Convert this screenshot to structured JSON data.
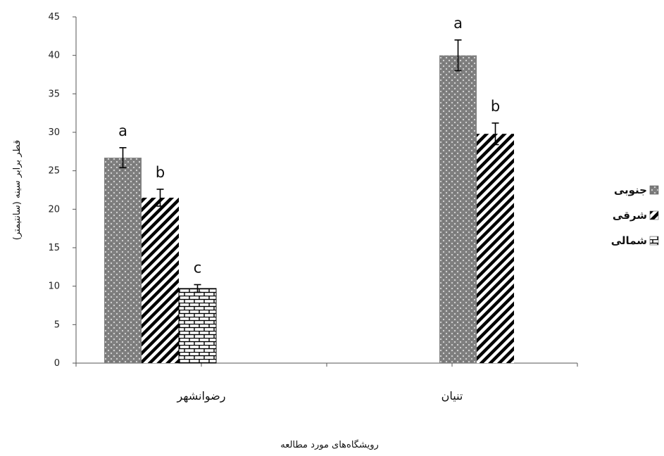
{
  "chart_data": {
    "type": "bar",
    "xlabel": "رویشگاه‌های مورد مطالعه",
    "ylabel": "قطر برابر سینه (سانتیمتر)",
    "ylim": [
      0,
      45
    ],
    "yticks": [
      0,
      5,
      10,
      15,
      20,
      25,
      30,
      35,
      40,
      45
    ],
    "categories": [
      "رضوانشهر",
      "تنیان"
    ],
    "series": [
      {
        "name": "جنوبی",
        "pattern": "dots",
        "values": [
          26.7,
          40.0
        ],
        "errors": [
          1.3,
          2.0
        ],
        "letters": [
          "a",
          "a"
        ]
      },
      {
        "name": "شرقی",
        "pattern": "diagonal",
        "values": [
          21.5,
          29.8
        ],
        "errors": [
          1.1,
          1.4
        ],
        "letters": [
          "b",
          "b"
        ]
      },
      {
        "name": "شمالی",
        "pattern": "brick",
        "values": [
          9.7,
          null
        ],
        "errors": [
          0.5,
          null
        ],
        "letters": [
          "c",
          null
        ]
      }
    ],
    "legend_position": "right",
    "grid": false
  },
  "colors": {
    "bar_dots": "#7f7f7f",
    "axis": "#555555"
  }
}
